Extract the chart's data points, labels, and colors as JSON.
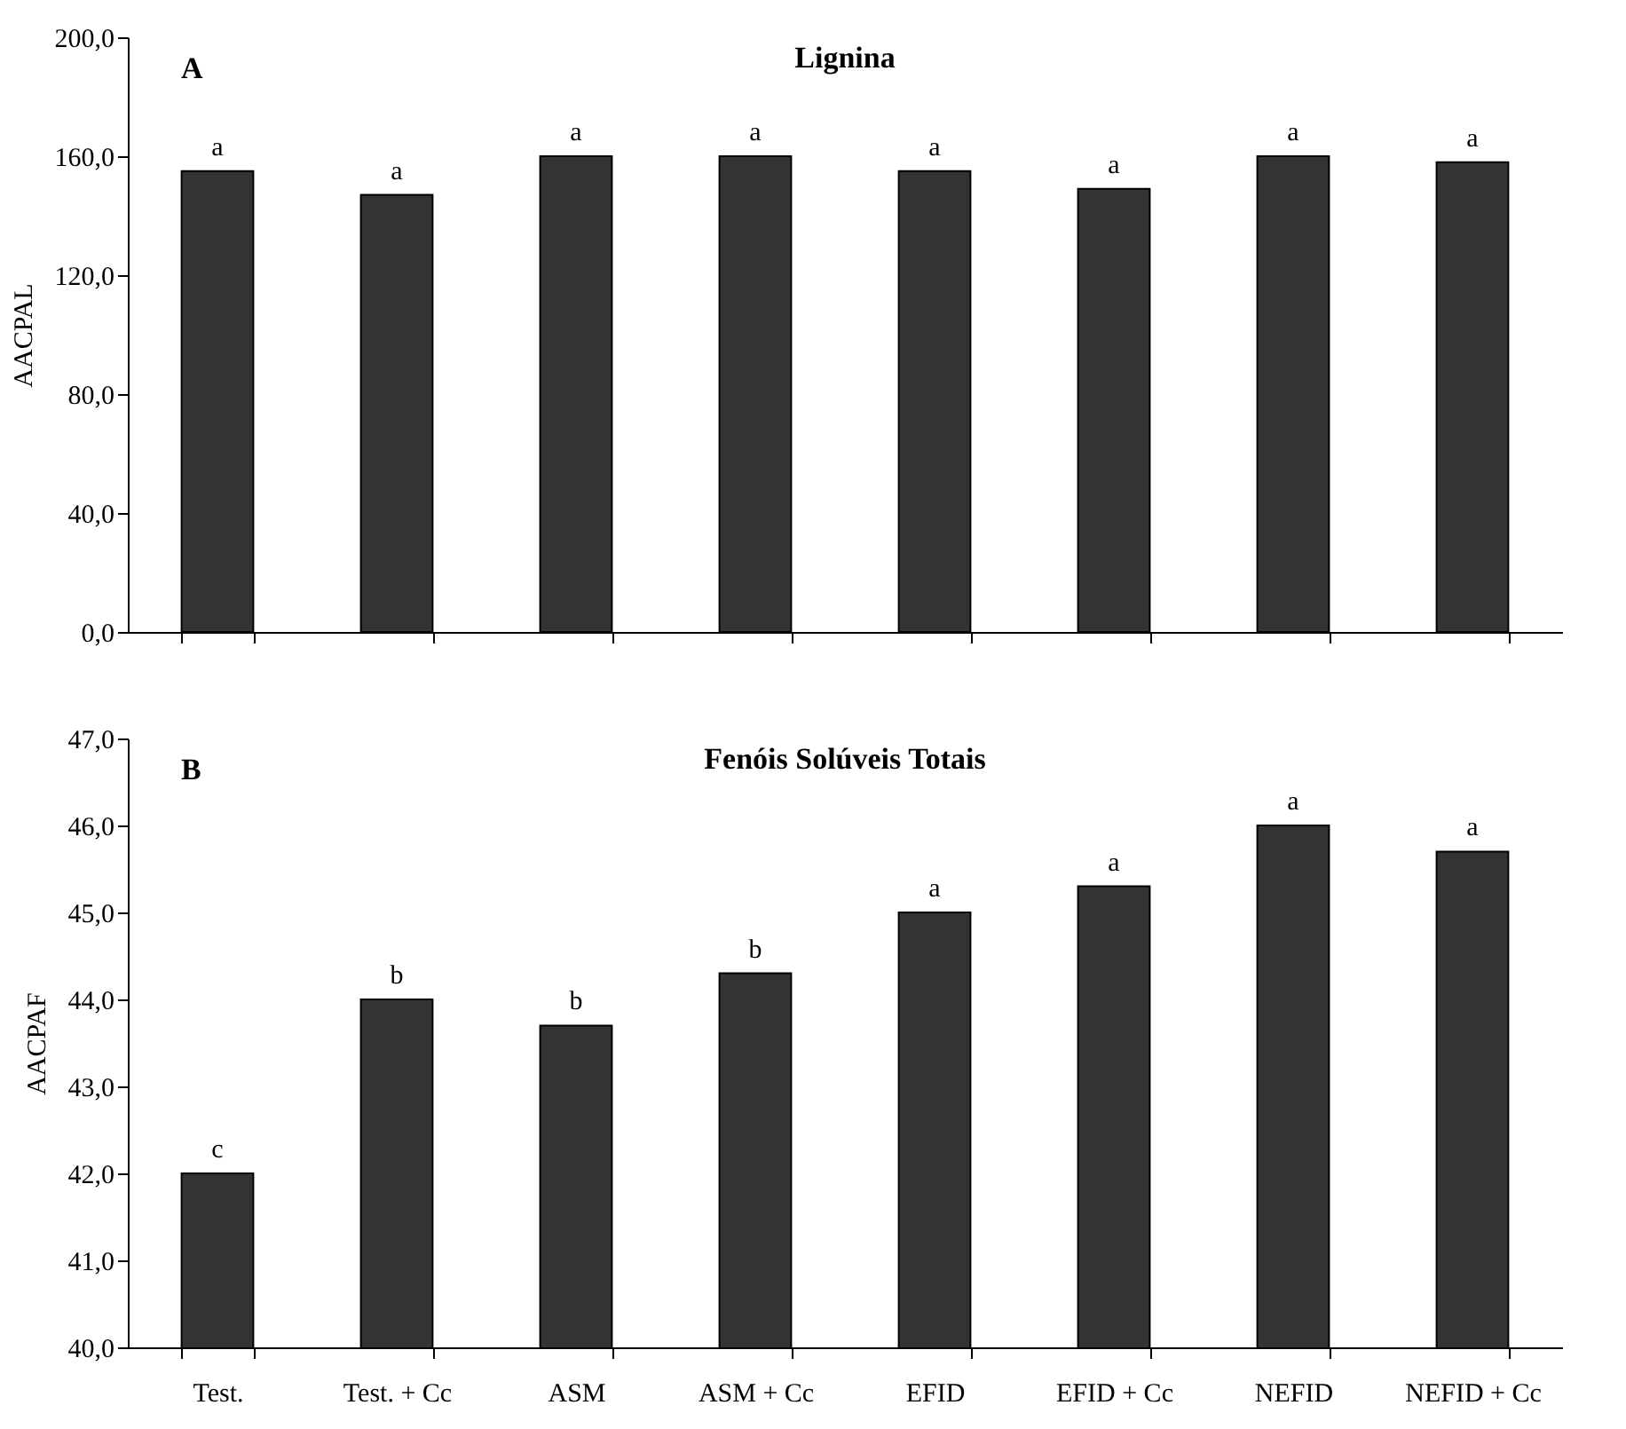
{
  "chart_data": [
    {
      "type": "bar",
      "title": "Lignina",
      "ylabel": "AACPAL",
      "annotations": [
        "A"
      ],
      "categories": [
        null,
        null,
        null,
        null,
        null,
        null,
        null,
        null
      ],
      "values": [
        155,
        147,
        160,
        160,
        155,
        149,
        160,
        158
      ],
      "value_labels": [
        "a",
        "a",
        "a",
        "a",
        "a",
        "a",
        "a",
        "a"
      ],
      "color": "#333333",
      "ylim": [
        0,
        200
      ],
      "yticks": [
        {
          "value": 0,
          "label": "0,0"
        },
        {
          "value": 40,
          "label": "40,0"
        },
        {
          "value": 80,
          "label": "80,0"
        },
        {
          "value": 120,
          "label": "120,0"
        },
        {
          "value": 160,
          "label": "160,0"
        },
        {
          "value": 200,
          "label": "200,0"
        }
      ],
      "tick_labels": "y",
      "grid": false
    },
    {
      "type": "bar",
      "title": "Fenóis Solúveis Totais",
      "ylabel": "AACPAF",
      "annotations": [
        "B"
      ],
      "categories": [
        "Test.",
        "Test. + Cc",
        "ASM",
        "ASM + Cc",
        "EFID",
        "EFID + Cc",
        "NEFID",
        "NEFID + Cc"
      ],
      "values": [
        42.0,
        44.0,
        43.7,
        44.3,
        45.0,
        45.3,
        46.0,
        45.7
      ],
      "value_labels": [
        "c",
        "b",
        "b",
        "b",
        "a",
        "a",
        "a",
        "a"
      ],
      "color": "#333333",
      "ylim": [
        40,
        47
      ],
      "yticks": [
        {
          "value": 40,
          "label": "40,0"
        },
        {
          "value": 41,
          "label": "41,0"
        },
        {
          "value": 42,
          "label": "42,0"
        },
        {
          "value": 43,
          "label": "43,0"
        },
        {
          "value": 44,
          "label": "44,0"
        },
        {
          "value": 45,
          "label": "45,0"
        },
        {
          "value": 46,
          "label": "46,0"
        },
        {
          "value": 47,
          "label": "47,0"
        }
      ],
      "grid": false
    }
  ]
}
